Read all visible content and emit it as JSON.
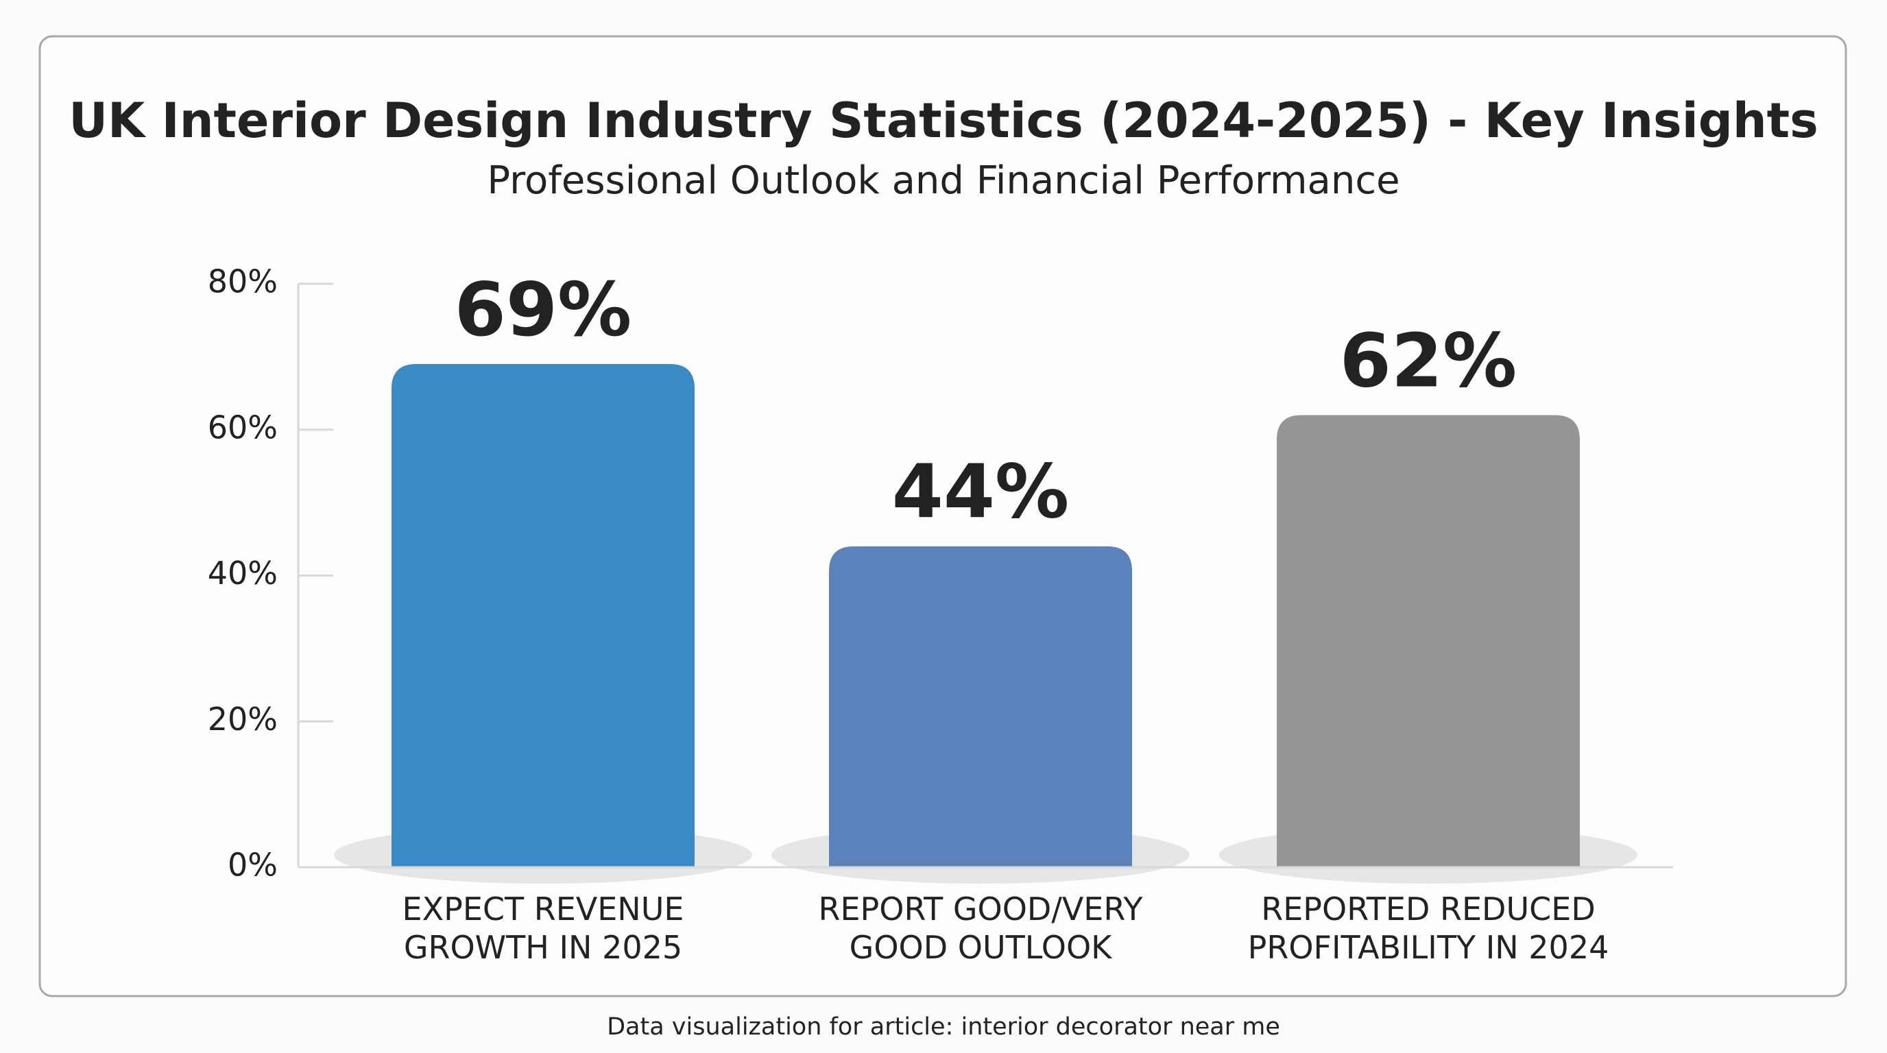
{
  "chart_data": {
    "type": "bar",
    "title": "UK Interior Design Industry Statistics (2024-2025) - Key Insights",
    "subtitle": "Professional Outlook and Financial Performance",
    "categories": [
      "EXPECT REVENUE GROWTH IN 2025",
      "REPORT GOOD/VERY GOOD OUTLOOK",
      "REPORTED REDUCED PROFITABILITY IN 2024"
    ],
    "values": [
      69,
      44,
      62
    ],
    "value_labels": [
      "69%",
      "44%",
      "62%"
    ],
    "colors": [
      "#3a8ac6",
      "#5b82bb",
      "#969696"
    ],
    "ylim": [
      0,
      80
    ],
    "yticks": [
      {
        "value": 0,
        "label": "0%"
      },
      {
        "value": 20,
        "label": "20%"
      },
      {
        "value": 40,
        "label": "40%"
      },
      {
        "value": 60,
        "label": "60%"
      },
      {
        "value": 80,
        "label": "80%"
      }
    ],
    "caption": "Data visualization for article: interior decorator near me"
  }
}
